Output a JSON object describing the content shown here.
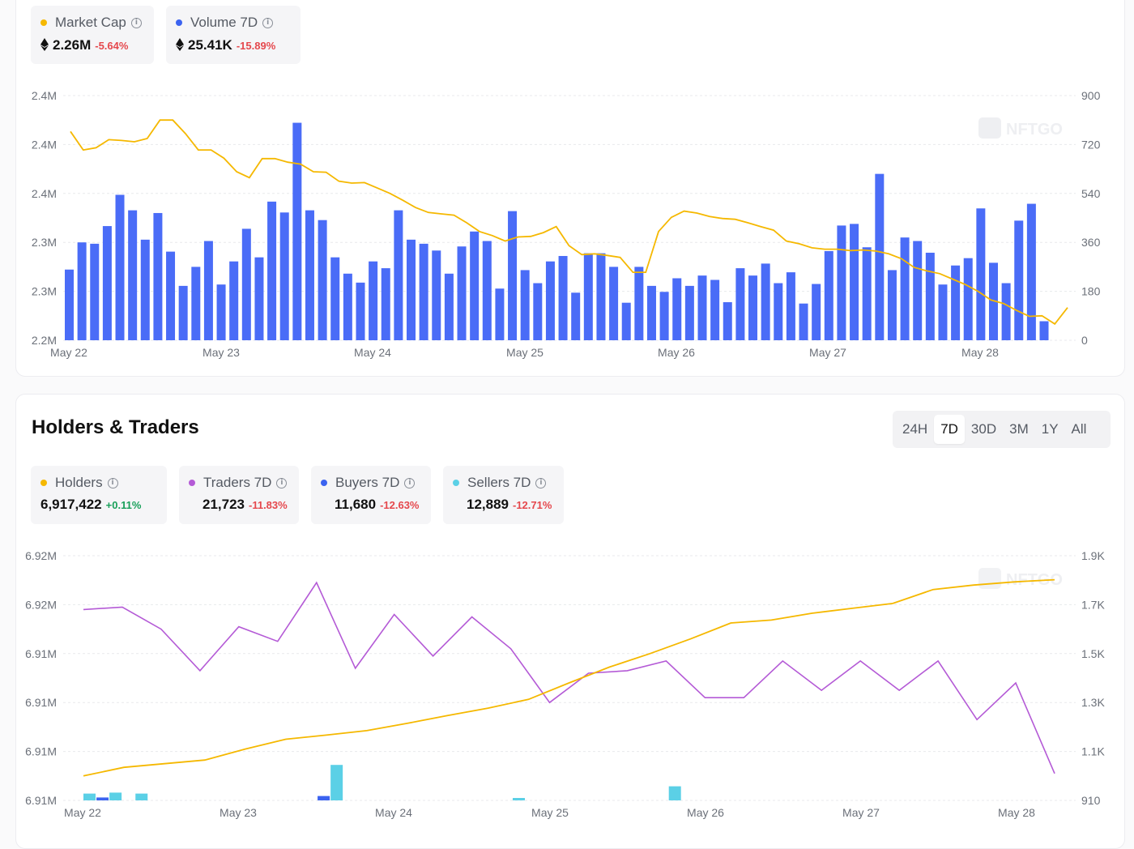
{
  "market": {
    "metrics": [
      {
        "label": "Market Cap",
        "value": "2.26M",
        "change": "-5.64%",
        "dot": "#f5b800",
        "eth": true
      },
      {
        "label": "Volume 7D",
        "value": "25.41K",
        "change": "-15.89%",
        "dot": "#3b63f0",
        "eth": true
      }
    ],
    "watermark": "NFTGO"
  },
  "holders": {
    "title": "Holders & Traders",
    "ranges": [
      "24H",
      "7D",
      "30D",
      "3M",
      "1Y",
      "All"
    ],
    "active_range": "7D",
    "metrics": [
      {
        "label": "Holders",
        "value": "6,917,422",
        "change": "+0.11%",
        "dot": "#f5b800"
      },
      {
        "label": "Traders 7D",
        "value": "21,723",
        "change": "-11.83%",
        "dot": "#b45ad6"
      },
      {
        "label": "Buyers 7D",
        "value": "11,680",
        "change": "-12.63%",
        "dot": "#3b63f0"
      },
      {
        "label": "Sellers 7D",
        "value": "12,889",
        "change": "-12.71%",
        "dot": "#5bd0e6"
      }
    ],
    "watermark": "NFTGO"
  },
  "colors": {
    "market_cap": "#f5b800",
    "volume": "#4a6cf7",
    "holders": "#f5b800",
    "traders": "#b45ad6",
    "buyers": "#3b63f0",
    "sellers": "#5bd0e6",
    "grid": "#e8e9ec"
  },
  "chart_data": [
    {
      "type": "bar",
      "title": "",
      "x_ticks": [
        "May 22",
        "May 23",
        "May 24",
        "May 25",
        "May 26",
        "May 27",
        "May 28"
      ],
      "y_left_ticks": [
        "2.2M",
        "2.3M",
        "2.3M",
        "2.4M",
        "2.4M",
        "2.4M"
      ],
      "y_right_ticks": [
        "0",
        "180",
        "360",
        "540",
        "720",
        "900"
      ],
      "y_right_range": [
        0,
        900
      ],
      "grid": true,
      "series": [
        {
          "name": "Volume 7D",
          "kind": "bar",
          "axis": "right",
          "values": [
            260,
            360,
            355,
            420,
            535,
            478,
            370,
            468,
            326,
            200,
            270,
            365,
            205,
            290,
            410,
            305,
            510,
            470,
            800,
            478,
            442,
            305,
            245,
            212,
            290,
            265,
            478,
            370,
            355,
            330,
            245,
            345,
            400,
            365,
            190,
            475,
            258,
            210,
            290,
            310,
            175,
            320,
            320,
            270,
            138,
            270,
            200,
            178,
            228,
            200,
            238,
            222,
            140,
            265,
            238,
            282,
            210,
            250,
            135,
            207,
            328,
            422,
            428,
            342,
            612,
            258,
            378,
            365,
            322,
            205,
            275,
            302,
            485,
            285,
            210,
            440,
            502,
            70
          ]
        },
        {
          "name": "Market Cap",
          "kind": "line",
          "axis": "right",
          "values": [
            768,
            700,
            708,
            738,
            735,
            730,
            742,
            810,
            810,
            760,
            700,
            700,
            670,
            620,
            598,
            668,
            668,
            655,
            648,
            620,
            618,
            585,
            578,
            580,
            560,
            540,
            515,
            488,
            470,
            465,
            460,
            432,
            400,
            385,
            365,
            380,
            382,
            396,
            418,
            348,
            315,
            318,
            312,
            305,
            250,
            250,
            400,
            452,
            475,
            468,
            455,
            448,
            445,
            432,
            418,
            405,
            365,
            355,
            340,
            335,
            335,
            330,
            332,
            328,
            318,
            300,
            268,
            255,
            245,
            225,
            205,
            180,
            148,
            135,
            110,
            88,
            90,
            60,
            120
          ]
        }
      ]
    },
    {
      "type": "line",
      "title": "",
      "x_ticks": [
        "May 22",
        "May 23",
        "May 24",
        "May 25",
        "May 26",
        "May 27",
        "May 28"
      ],
      "y_left_ticks": [
        "6.91M",
        "6.91M",
        "6.91M",
        "6.91M",
        "6.91M",
        "6.92M",
        "6.92M"
      ],
      "y_right_ticks": [
        "910",
        "1.1K",
        "1.3K",
        "1.5K",
        "1.7K",
        "1.9K"
      ],
      "y_right_range": [
        910,
        1910
      ],
      "grid": true,
      "series": [
        {
          "name": "Traders 7D",
          "kind": "line",
          "axis": "right",
          "values": [
            1690,
            1700,
            1610,
            1440,
            1620,
            1560,
            1800,
            1450,
            1670,
            1500,
            1660,
            1530,
            1310,
            1430,
            1440,
            1480,
            1330,
            1330,
            1480,
            1360,
            1480,
            1360,
            1480,
            1240,
            1390,
            1020
          ]
        },
        {
          "name": "Holders",
          "kind": "line",
          "axis": "right",
          "values": [
            1010,
            1045,
            1060,
            1075,
            1120,
            1160,
            1177,
            1195,
            1225,
            1257,
            1287,
            1323,
            1390,
            1455,
            1510,
            1570,
            1635,
            1647,
            1675,
            1695,
            1715,
            1772,
            1790,
            1803,
            1812
          ]
        },
        {
          "name": "Buyers 7D",
          "kind": "bar",
          "axis": "right",
          "values": [
            0,
            12,
            0,
            0,
            0,
            0,
            0,
            0,
            0,
            0,
            0,
            0,
            0,
            0,
            0,
            0,
            0,
            0,
            18,
            0,
            0,
            0,
            0,
            0,
            0,
            0,
            0,
            0,
            0,
            0,
            0,
            0,
            0,
            0,
            0,
            0,
            0,
            0,
            0,
            0,
            0,
            0,
            0,
            0,
            0,
            0,
            0,
            0,
            0,
            0,
            0,
            0,
            0,
            0,
            0,
            0,
            0,
            0,
            0,
            0,
            0,
            0,
            0,
            0,
            0,
            0,
            0,
            0,
            0,
            0,
            0,
            0,
            0,
            0,
            0,
            0,
            0,
            0
          ]
        },
        {
          "name": "Sellers 7D",
          "kind": "bar",
          "axis": "right",
          "values": [
            28,
            0,
            32,
            0,
            28,
            0,
            0,
            0,
            0,
            0,
            0,
            0,
            0,
            0,
            0,
            0,
            0,
            0,
            0,
            146,
            0,
            0,
            0,
            0,
            0,
            0,
            0,
            0,
            0,
            0,
            0,
            0,
            0,
            10,
            0,
            0,
            0,
            0,
            0,
            0,
            0,
            0,
            0,
            0,
            0,
            58,
            0,
            0,
            0,
            0,
            0,
            0,
            0,
            0,
            0,
            0,
            0,
            0,
            0,
            0,
            0,
            0,
            0,
            0,
            0,
            0,
            0,
            0,
            0,
            0,
            0,
            0,
            0,
            0,
            0,
            0,
            0,
            0
          ]
        }
      ]
    }
  ]
}
